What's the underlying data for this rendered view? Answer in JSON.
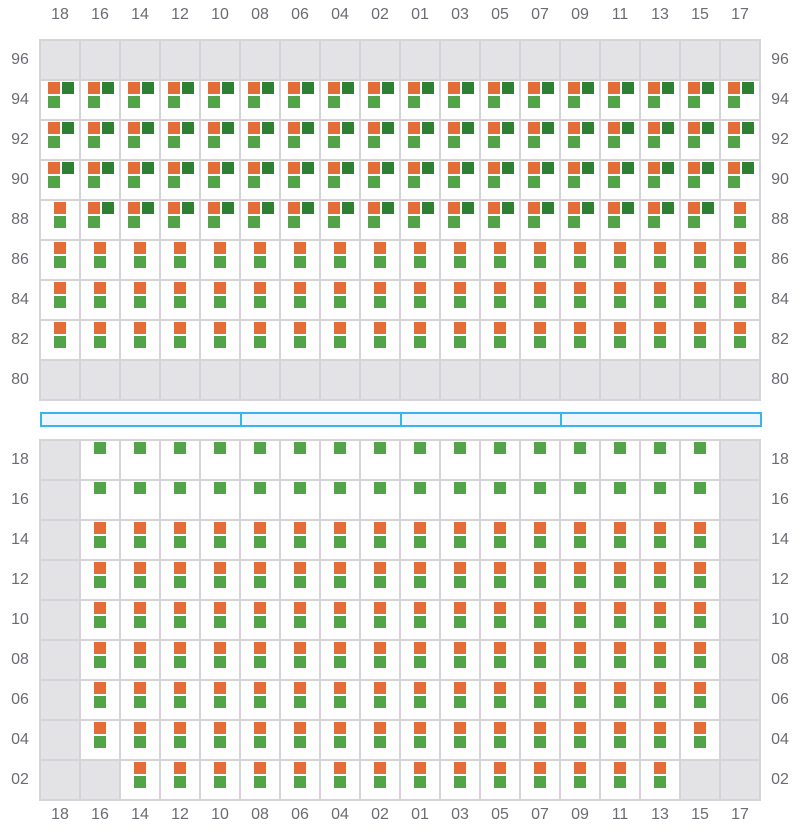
{
  "columns": [
    "18",
    "16",
    "14",
    "12",
    "10",
    "08",
    "06",
    "04",
    "02",
    "01",
    "03",
    "05",
    "07",
    "09",
    "11",
    "13",
    "15",
    "17"
  ],
  "colors": {
    "orange": "#e36c37",
    "green": "#53a448",
    "dark_green": "#2d8031",
    "empty": "#e3e3e6",
    "bar": "#3bb3ec"
  },
  "legend_codes": {
    "x": "unavailable",
    "ogd": "orange+dark-green+green",
    "og": "orange+green",
    "g": "green"
  },
  "top_section": {
    "rows": [
      {
        "label": "96",
        "cells": [
          "x",
          "x",
          "x",
          "x",
          "x",
          "x",
          "x",
          "x",
          "x",
          "x",
          "x",
          "x",
          "x",
          "x",
          "x",
          "x",
          "x",
          "x"
        ]
      },
      {
        "label": "94",
        "cells": [
          "ogd",
          "ogd",
          "ogd",
          "ogd",
          "ogd",
          "ogd",
          "ogd",
          "ogd",
          "ogd",
          "ogd",
          "ogd",
          "ogd",
          "ogd",
          "ogd",
          "ogd",
          "ogd",
          "ogd",
          "ogd"
        ]
      },
      {
        "label": "92",
        "cells": [
          "ogd",
          "ogd",
          "ogd",
          "ogd",
          "ogd",
          "ogd",
          "ogd",
          "ogd",
          "ogd",
          "ogd",
          "ogd",
          "ogd",
          "ogd",
          "ogd",
          "ogd",
          "ogd",
          "ogd",
          "ogd"
        ]
      },
      {
        "label": "90",
        "cells": [
          "ogd",
          "ogd",
          "ogd",
          "ogd",
          "ogd",
          "ogd",
          "ogd",
          "ogd",
          "ogd",
          "ogd",
          "ogd",
          "ogd",
          "ogd",
          "ogd",
          "ogd",
          "ogd",
          "ogd",
          "ogd"
        ]
      },
      {
        "label": "88",
        "cells": [
          "og",
          "ogd",
          "ogd",
          "ogd",
          "ogd",
          "ogd",
          "ogd",
          "ogd",
          "ogd",
          "ogd",
          "ogd",
          "ogd",
          "ogd",
          "ogd",
          "ogd",
          "ogd",
          "ogd",
          "og"
        ]
      },
      {
        "label": "86",
        "cells": [
          "og",
          "og",
          "og",
          "og",
          "og",
          "og",
          "og",
          "og",
          "og",
          "og",
          "og",
          "og",
          "og",
          "og",
          "og",
          "og",
          "og",
          "og"
        ]
      },
      {
        "label": "84",
        "cells": [
          "og",
          "og",
          "og",
          "og",
          "og",
          "og",
          "og",
          "og",
          "og",
          "og",
          "og",
          "og",
          "og",
          "og",
          "og",
          "og",
          "og",
          "og"
        ]
      },
      {
        "label": "82",
        "cells": [
          "og",
          "og",
          "og",
          "og",
          "og",
          "og",
          "og",
          "og",
          "og",
          "og",
          "og",
          "og",
          "og",
          "og",
          "og",
          "og",
          "og",
          "og"
        ]
      },
      {
        "label": "80",
        "cells": [
          "x",
          "x",
          "x",
          "x",
          "x",
          "x",
          "x",
          "x",
          "x",
          "x",
          "x",
          "x",
          "x",
          "x",
          "x",
          "x",
          "x",
          "x"
        ]
      }
    ]
  },
  "bottom_section": {
    "rows": [
      {
        "label": "18",
        "cells": [
          "x",
          "g",
          "g",
          "g",
          "g",
          "g",
          "g",
          "g",
          "g",
          "g",
          "g",
          "g",
          "g",
          "g",
          "g",
          "g",
          "g",
          "x"
        ]
      },
      {
        "label": "16",
        "cells": [
          "x",
          "g",
          "g",
          "g",
          "g",
          "g",
          "g",
          "g",
          "g",
          "g",
          "g",
          "g",
          "g",
          "g",
          "g",
          "g",
          "g",
          "x"
        ]
      },
      {
        "label": "14",
        "cells": [
          "x",
          "og",
          "og",
          "og",
          "og",
          "og",
          "og",
          "og",
          "og",
          "og",
          "og",
          "og",
          "og",
          "og",
          "og",
          "og",
          "og",
          "x"
        ]
      },
      {
        "label": "12",
        "cells": [
          "x",
          "og",
          "og",
          "og",
          "og",
          "og",
          "og",
          "og",
          "og",
          "og",
          "og",
          "og",
          "og",
          "og",
          "og",
          "og",
          "og",
          "x"
        ]
      },
      {
        "label": "10",
        "cells": [
          "x",
          "og",
          "og",
          "og",
          "og",
          "og",
          "og",
          "og",
          "og",
          "og",
          "og",
          "og",
          "og",
          "og",
          "og",
          "og",
          "og",
          "x"
        ]
      },
      {
        "label": "08",
        "cells": [
          "x",
          "og",
          "og",
          "og",
          "og",
          "og",
          "og",
          "og",
          "og",
          "og",
          "og",
          "og",
          "og",
          "og",
          "og",
          "og",
          "og",
          "x"
        ]
      },
      {
        "label": "06",
        "cells": [
          "x",
          "og",
          "og",
          "og",
          "og",
          "og",
          "og",
          "og",
          "og",
          "og",
          "og",
          "og",
          "og",
          "og",
          "og",
          "og",
          "og",
          "x"
        ]
      },
      {
        "label": "04",
        "cells": [
          "x",
          "og",
          "og",
          "og",
          "og",
          "og",
          "og",
          "og",
          "og",
          "og",
          "og",
          "og",
          "og",
          "og",
          "og",
          "og",
          "og",
          "x"
        ]
      },
      {
        "label": "02",
        "cells": [
          "x",
          "x",
          "og",
          "og",
          "og",
          "og",
          "og",
          "og",
          "og",
          "og",
          "og",
          "og",
          "og",
          "og",
          "og",
          "og",
          "x",
          "x"
        ]
      }
    ]
  },
  "divider_segments": 4
}
